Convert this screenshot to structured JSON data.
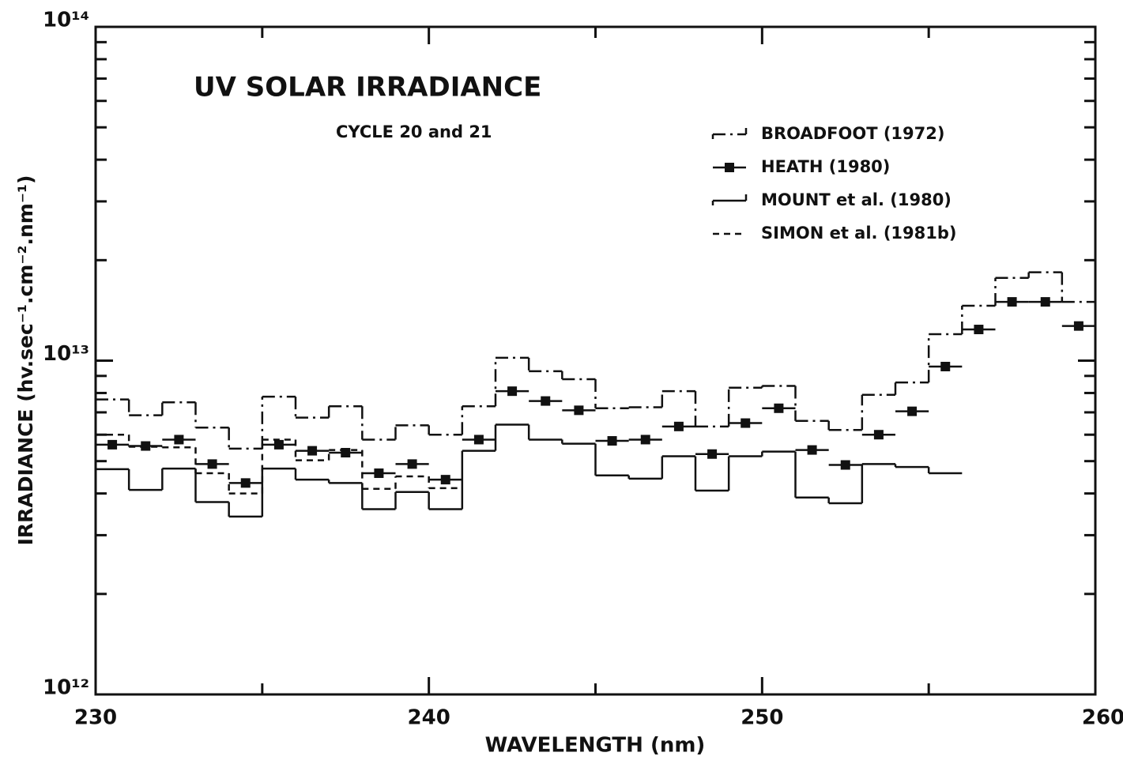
{
  "chart_data": {
    "type": "step",
    "title": "UV SOLAR IRRADIANCE",
    "subtitle": "CYCLE 20 and 21",
    "x_label": "WAVELENGTH (nm)",
    "y_label": "IRRADIANCE (hv.sec⁻¹.cm⁻².nm⁻¹)",
    "xlim": [
      230,
      260
    ],
    "xticks": [
      230,
      240,
      250,
      260
    ],
    "xminor_ticks": [
      235,
      245,
      255
    ],
    "ylim": [
      1000000000000.0,
      100000000000000.0
    ],
    "log_y": true,
    "yticks": [
      {
        "value": 1000000000000.0,
        "label": "10¹²"
      },
      {
        "value": 10000000000000.0,
        "label": "10¹³"
      },
      {
        "value": 100000000000000.0,
        "label": "10¹⁴"
      }
    ],
    "yminor_ticks": [
      2000000000000.0,
      3000000000000.0,
      4000000000000.0,
      5000000000000.0,
      6000000000000.0,
      7000000000000.0,
      8000000000000.0,
      9000000000000.0,
      20000000000000.0,
      30000000000000.0,
      40000000000000.0,
      50000000000000.0,
      60000000000000.0,
      70000000000000.0,
      80000000000000.0,
      90000000000000.0
    ],
    "legend": "upper right",
    "grid": false,
    "series": [
      {
        "name": "BROADFOOT (1972)",
        "color": "#111",
        "linestyle": "dashdot",
        "marker": null,
        "bins": [
          230,
          231,
          232,
          233,
          234,
          235,
          236,
          237,
          238,
          239,
          240,
          241,
          242,
          243,
          244,
          245,
          246,
          247,
          248,
          249,
          250,
          251,
          252,
          253,
          254,
          255,
          256,
          257,
          258,
          259,
          260
        ],
        "values": [
          7650000000000.0,
          6860000000000.0,
          7500000000000.0,
          6300000000000.0,
          5450000000000.0,
          7800000000000.0,
          6750000000000.0,
          7300000000000.0,
          5800000000000.0,
          6400000000000.0,
          6000000000000.0,
          7300000000000.0,
          10200000000000.0,
          9300000000000.0,
          8800000000000.0,
          7200000000000.0,
          7250000000000.0,
          8100000000000.0,
          6350000000000.0,
          8300000000000.0,
          8400000000000.0,
          6600000000000.0,
          6200000000000.0,
          7900000000000.0,
          8600000000000.0,
          12000000000000.0,
          14600000000000.0,
          17700000000000.0,
          18400000000000.0,
          15000000000000.0
        ]
      },
      {
        "name": "HEATH (1980)",
        "color": "#111",
        "linestyle": "solid",
        "marker": "square",
        "bins": [
          230,
          231,
          232,
          233,
          234,
          235,
          236,
          237,
          238,
          239,
          240,
          241,
          242,
          243,
          244,
          245,
          246,
          247,
          248,
          249,
          250,
          251,
          252,
          253,
          254,
          255,
          256,
          257,
          258,
          259,
          260
        ],
        "values": [
          5600000000000.0,
          5550000000000.0,
          5800000000000.0,
          4900000000000.0,
          4300000000000.0,
          5600000000000.0,
          5370000000000.0,
          5300000000000.0,
          4600000000000.0,
          4900000000000.0,
          4400000000000.0,
          5800000000000.0,
          8100000000000.0,
          7570000000000.0,
          7100000000000.0,
          5750000000000.0,
          5800000000000.0,
          6350000000000.0,
          5250000000000.0,
          6500000000000.0,
          7200000000000.0,
          5400000000000.0,
          4870000000000.0,
          6000000000000.0,
          7050000000000.0,
          9600000000000.0,
          12400000000000.0,
          15000000000000.0,
          15000000000000.0,
          12700000000000.0
        ]
      },
      {
        "name": "MOUNT et al. (1980)",
        "color": "#111",
        "linestyle": "solid",
        "marker": null,
        "bins": [
          230,
          231,
          232,
          233,
          234,
          235,
          236,
          237,
          238,
          239,
          240,
          241,
          242,
          243,
          244,
          245,
          246,
          247,
          248,
          249,
          250,
          251,
          252,
          253,
          254,
          255,
          256
        ],
        "values": [
          4730000000000.0,
          4100000000000.0,
          4750000000000.0,
          3770000000000.0,
          3410000000000.0,
          4750000000000.0,
          4400000000000.0,
          4300000000000.0,
          3590000000000.0,
          4040000000000.0,
          3590000000000.0,
          5370000000000.0,
          6430000000000.0,
          5800000000000.0,
          5640000000000.0,
          4530000000000.0,
          4430000000000.0,
          5170000000000.0,
          4080000000000.0,
          5170000000000.0,
          5340000000000.0,
          3890000000000.0,
          3740000000000.0,
          4900000000000.0,
          4800000000000.0,
          4600000000000.0
        ]
      },
      {
        "name": "SIMON et al. (1981b)",
        "color": "#111",
        "linestyle": "dashed",
        "marker": null,
        "bins": [
          230,
          231,
          232,
          233,
          234,
          235,
          236,
          237,
          238,
          239,
          240,
          241
        ],
        "values": [
          6000000000000.0,
          5520000000000.0,
          5500000000000.0,
          4600000000000.0,
          4000000000000.0,
          5800000000000.0,
          5030000000000.0,
          5400000000000.0,
          4130000000000.0,
          4500000000000.0,
          4150000000000.0
        ]
      }
    ]
  }
}
